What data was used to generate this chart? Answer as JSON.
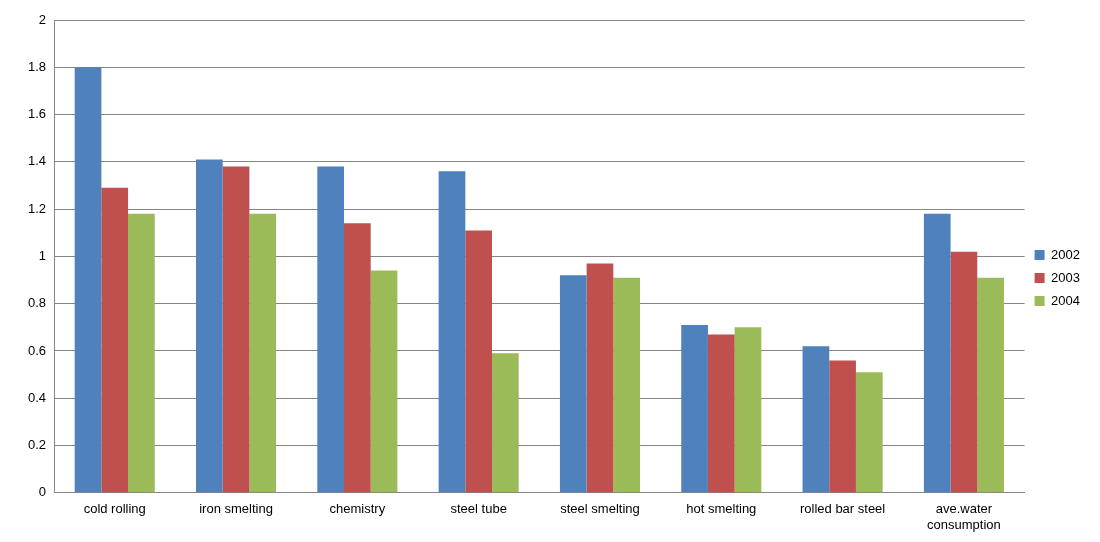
{
  "chart_data": {
    "type": "bar",
    "categories": [
      "cold rolling",
      "iron smelting",
      "chemistry",
      "steel tube",
      "steel smelting",
      "hot smelting",
      "rolled bar steel",
      "ave.water consumption"
    ],
    "series": [
      {
        "name": "2002",
        "color": "#4f81bd",
        "values": [
          1.8,
          1.41,
          1.38,
          1.36,
          0.92,
          0.71,
          0.62,
          1.18
        ]
      },
      {
        "name": "2003",
        "color": "#c0504d",
        "values": [
          1.29,
          1.38,
          1.14,
          1.11,
          0.97,
          0.67,
          0.56,
          1.02
        ]
      },
      {
        "name": "2004",
        "color": "#9bbb59",
        "values": [
          1.18,
          1.18,
          0.94,
          0.59,
          0.91,
          0.7,
          0.51,
          0.91
        ]
      }
    ],
    "ylim": [
      0,
      2
    ],
    "yticks": [
      0,
      0.2,
      0.4,
      0.6,
      0.8,
      1,
      1.2,
      1.4,
      1.6,
      1.8,
      2
    ],
    "grid": "y",
    "legend": "right"
  }
}
